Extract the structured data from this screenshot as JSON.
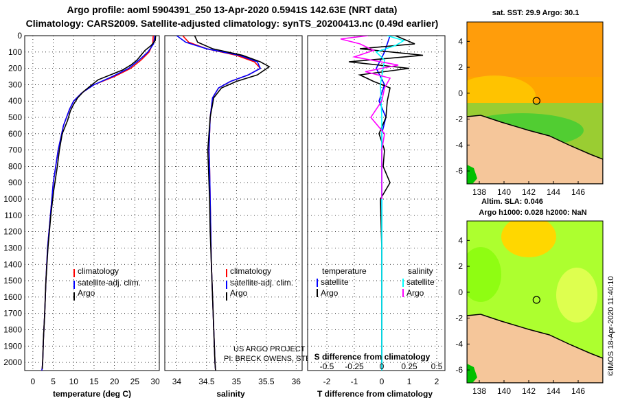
{
  "header": {
    "line1": "Argo profile: aoml 5904391_250 13-Apr-2020 0.5941S 142.63E (NRT data)",
    "line2": "Climatology: CARS2009. Satellite-adjusted climatology: synTS_20200413.nc (0.49d earlier)"
  },
  "colors": {
    "climatology": "#ff0000",
    "satellite": "#0000ff",
    "argo": "#000000",
    "argo_salinity_diff": "#ff00ff",
    "sat_salinity_diff": "#00ffff",
    "land": "#f5c69a"
  },
  "chart_data": [
    {
      "type": "line",
      "name": "temperature",
      "xlabel": "temperature (deg C)",
      "xlim": [
        -2,
        31
      ],
      "xticks": [
        "0",
        "5",
        "10",
        "15",
        "20",
        "25",
        "30"
      ],
      "xtick_values": [
        0,
        5,
        10,
        15,
        20,
        25,
        30
      ],
      "ylim": [
        0,
        2050
      ],
      "yticks": [
        "0",
        "100",
        "200",
        "300",
        "400",
        "500",
        "600",
        "700",
        "800",
        "900",
        "1000",
        "1100",
        "1200",
        "1300",
        "1400",
        "1500",
        "1600",
        "1700",
        "1800",
        "1900",
        "2000"
      ],
      "ytick_values": [
        0,
        100,
        200,
        300,
        400,
        500,
        600,
        700,
        800,
        900,
        1000,
        1100,
        1200,
        1300,
        1400,
        1500,
        1600,
        1700,
        1800,
        1900,
        2000
      ],
      "legend": [
        "climatology",
        "satellite-adj. clim.",
        "Argo"
      ],
      "series": [
        {
          "name": "climatology",
          "color": "#ff0000",
          "x": [
            29.5,
            29.4,
            28.5,
            26.5,
            24,
            20,
            15,
            12,
            10,
            9,
            7.5,
            6.2,
            5,
            4.3,
            3.6,
            3.2,
            2.9,
            2.6,
            2.4,
            2.3,
            2.2
          ],
          "y": [
            0,
            50,
            100,
            150,
            200,
            250,
            300,
            350,
            400,
            450,
            550,
            700,
            900,
            1100,
            1300,
            1500,
            1700,
            1850,
            2000,
            2030,
            2050
          ]
        },
        {
          "name": "satellite-adj. clim.",
          "color": "#0000ff",
          "x": [
            29.9,
            29.6,
            28.2,
            26,
            23.5,
            19.5,
            15,
            12,
            10,
            9,
            7.5,
            6.2,
            5,
            4.3,
            3.6,
            3.2,
            2.9,
            2.6,
            2.4,
            2.3,
            2.2
          ],
          "y": [
            0,
            50,
            100,
            150,
            200,
            250,
            300,
            350,
            400,
            450,
            550,
            700,
            900,
            1100,
            1300,
            1500,
            1700,
            1850,
            2000,
            2030,
            2050
          ]
        },
        {
          "name": "Argo",
          "color": "#000000",
          "x": [
            30.1,
            30.0,
            29.0,
            27.5,
            26.5,
            25.5,
            24,
            22,
            19,
            16,
            14.5,
            12.5,
            11,
            10,
            9.2,
            8.5,
            7.2,
            6.5,
            6,
            5.1,
            4.4,
            3.7,
            3.2,
            2.9,
            2.6,
            2.4,
            2.3
          ],
          "y": [
            0,
            30,
            60,
            90,
            120,
            150,
            180,
            210,
            240,
            270,
            300,
            340,
            380,
            420,
            460,
            520,
            600,
            700,
            800,
            950,
            1100,
            1300,
            1500,
            1700,
            1850,
            2000,
            2040
          ]
        }
      ]
    },
    {
      "type": "line",
      "name": "salinity",
      "xlabel": "salinity",
      "xlim": [
        33.8,
        36.1
      ],
      "xticks": [
        "34",
        "34.5",
        "35",
        "35.5",
        "36"
      ],
      "xtick_values": [
        34,
        34.5,
        35,
        35.5,
        36
      ],
      "ylim": [
        0,
        2050
      ],
      "legend": [
        "climatology",
        "satellite-adj. clim.",
        "Argo"
      ],
      "annotations": [
        "US ARGO PROJECT",
        "PI: BRECK OWENS, STEVE JAYNE, P. ROBBINS"
      ],
      "series": [
        {
          "name": "climatology",
          "color": "#ff0000",
          "x": [
            34.1,
            34.2,
            34.5,
            35.0,
            35.3,
            35.4,
            35.2,
            34.9,
            34.7,
            34.6,
            34.56,
            34.54,
            34.55,
            34.56,
            34.57,
            34.58,
            34.6,
            34.62,
            34.64,
            34.65
          ],
          "y": [
            0,
            40,
            80,
            120,
            160,
            200,
            240,
            280,
            320,
            380,
            500,
            700,
            800,
            1000,
            1200,
            1400,
            1600,
            1800,
            2000,
            2050
          ]
        },
        {
          "name": "satellite-adj. clim.",
          "color": "#0000ff",
          "x": [
            34.0,
            34.15,
            34.5,
            35.05,
            35.35,
            35.4,
            35.2,
            34.9,
            34.7,
            34.6,
            34.56,
            34.54,
            34.55,
            34.56,
            34.57,
            34.58,
            34.6,
            34.62,
            34.64,
            34.65
          ],
          "y": [
            0,
            40,
            80,
            120,
            160,
            200,
            240,
            280,
            320,
            380,
            500,
            700,
            800,
            1000,
            1200,
            1400,
            1600,
            1800,
            2000,
            2050
          ]
        },
        {
          "name": "Argo",
          "color": "#000000",
          "x": [
            34.3,
            34.35,
            34.6,
            35.1,
            35.4,
            35.55,
            35.35,
            35.0,
            34.75,
            34.62,
            34.56,
            34.52,
            34.53,
            34.55,
            34.56,
            34.58,
            34.6,
            34.62,
            34.64,
            34.65
          ],
          "y": [
            0,
            40,
            80,
            120,
            160,
            190,
            240,
            280,
            320,
            380,
            500,
            700,
            800,
            1000,
            1200,
            1400,
            1600,
            1800,
            2000,
            2050
          ]
        }
      ]
    },
    {
      "type": "line",
      "name": "difference from climatology",
      "xlabel": "T difference from climatology",
      "xlim": [
        -2.7,
        2.3
      ],
      "xticks": [
        "-2",
        "-1",
        "0",
        "1",
        "2"
      ],
      "xtick_values": [
        -2,
        -1,
        0,
        1,
        2
      ],
      "top_xlabel": "S difference from climatology",
      "top_xticks": [
        "-0.5",
        "-0.25",
        "0",
        "0.25",
        "0.5"
      ],
      "ylim": [
        0,
        2050
      ],
      "legend": {
        "temperature": [
          "satellite",
          "Argo"
        ],
        "salinity": [
          "satellite",
          "Argo"
        ]
      },
      "series": [
        {
          "name": "temperature satellite",
          "color": "#0000ff",
          "x": [
            0.3,
            0.1,
            -0.2,
            0.1,
            -0.1,
            0.15,
            0,
            0,
            0,
            0,
            0,
            0,
            0
          ],
          "y": [
            0,
            100,
            200,
            300,
            400,
            500,
            600,
            800,
            1000,
            1400,
            1800,
            2000,
            2050
          ]
        },
        {
          "name": "temperature Argo",
          "color": "#000000",
          "x": [
            0.5,
            1.2,
            -0.8,
            1.5,
            -1.2,
            1.0,
            -0.8,
            -0.3,
            0.3,
            0.2,
            0.15,
            -0.1,
            0.1,
            0.05,
            0.3,
            -0.05,
            0,
            0,
            0
          ],
          "y": [
            0,
            50,
            80,
            120,
            160,
            200,
            240,
            280,
            320,
            400,
            500,
            600,
            700,
            800,
            900,
            1000,
            1300,
            1800,
            2050
          ]
        },
        {
          "name": "salinity satellite",
          "color": "#00ffff",
          "x": [
            0.2,
            0.8,
            0.5,
            -0.2,
            0.1,
            0.05,
            -0.05,
            0,
            0,
            0,
            0,
            0
          ],
          "y": [
            0,
            30,
            60,
            100,
            150,
            200,
            300,
            500,
            800,
            1200,
            1800,
            2050
          ]
        },
        {
          "name": "salinity Argo",
          "color": "#ff00ff",
          "x": [
            -0.5,
            -1.5,
            -0.8,
            -0.3,
            -1.0,
            0.6,
            -0.6,
            0.3,
            0.1,
            0,
            -0.4,
            0.1,
            0,
            0,
            0
          ],
          "y": [
            0,
            20,
            50,
            90,
            130,
            180,
            220,
            260,
            320,
            400,
            500,
            600,
            700,
            900,
            1000
          ]
        }
      ]
    },
    {
      "type": "heatmap",
      "name": "sat-sst-map",
      "title": "sat. SST: 29.9  Argo: 30.1",
      "xlim": [
        137,
        148
      ],
      "xticks": [
        "138",
        "140",
        "142",
        "144",
        "146"
      ],
      "ylim": [
        -7,
        5.5
      ],
      "yticks": [
        "4",
        "2",
        "0",
        "-2",
        "-4",
        "-6"
      ],
      "argo_marker": {
        "lon": 142.63,
        "lat": -0.59
      }
    },
    {
      "type": "heatmap",
      "name": "altim-sla-map",
      "title_line1": "Altim. SLA: 0.046",
      "title_line2": "Argo h1000: 0.028  h2000: NaN",
      "xlim": [
        137,
        148
      ],
      "xticks": [
        "138",
        "140",
        "142",
        "144",
        "146"
      ],
      "ylim": [
        -7,
        5.5
      ],
      "yticks": [
        "4",
        "2",
        "0",
        "-2",
        "-4",
        "-6"
      ],
      "argo_marker": {
        "lon": 142.63,
        "lat": -0.59
      }
    }
  ],
  "legend_labels": {
    "climatology": "climatology",
    "satellite_adj": "satellite-adj. clim.",
    "argo": "Argo",
    "temperature": "temperature",
    "salinity": "salinity",
    "satellite": "satellite"
  },
  "watermark": "©IMOS 18-Apr-2020 11:40:10"
}
